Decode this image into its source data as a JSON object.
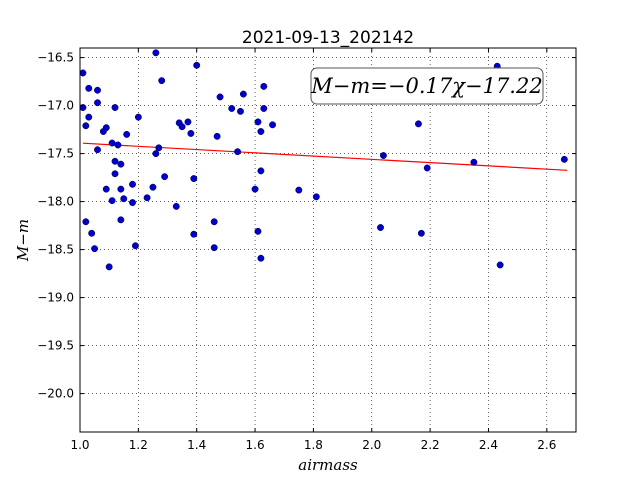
{
  "chart_data": {
    "type": "scatter",
    "title": "2021-09-13_202142",
    "xlabel": "airmass",
    "ylabel": "M−m",
    "xlim": [
      1.0,
      2.7
    ],
    "ylim": [
      -20.4,
      -16.4
    ],
    "y_inverted": true,
    "grid": true,
    "x_ticks": [
      1.0,
      1.2,
      1.4,
      1.6,
      1.8,
      2.0,
      2.2,
      2.4,
      2.6
    ],
    "x_tick_labels": [
      "1.0",
      "1.2",
      "1.4",
      "1.6",
      "1.8",
      "2.0",
      "2.2",
      "2.4",
      "2.6"
    ],
    "y_ticks": [
      -16.5,
      -17.0,
      -17.5,
      -18.0,
      -18.5,
      -19.0,
      -19.5,
      -20.0
    ],
    "y_tick_labels": [
      "−16.5",
      "−17.0",
      "−17.5",
      "−18.0",
      "−18.5",
      "−19.0",
      "−19.5",
      "−20.0"
    ],
    "annotation": "M−m=−0.17χ−17.22",
    "points_color": "#0000cc",
    "fit_color": "#ff0000",
    "fit": {
      "slope": -0.17,
      "intercept": -17.22,
      "x_range": [
        1.01,
        2.67
      ]
    },
    "points": [
      [
        1.01,
        -16.66
      ],
      [
        1.01,
        -17.02
      ],
      [
        1.02,
        -18.21
      ],
      [
        1.02,
        -17.21
      ],
      [
        1.03,
        -16.82
      ],
      [
        1.03,
        -17.12
      ],
      [
        1.04,
        -18.33
      ],
      [
        1.05,
        -18.49
      ],
      [
        1.06,
        -16.84
      ],
      [
        1.06,
        -16.97
      ],
      [
        1.06,
        -17.46
      ],
      [
        1.08,
        -17.27
      ],
      [
        1.09,
        -17.23
      ],
      [
        1.09,
        -17.87
      ],
      [
        1.1,
        -18.68
      ],
      [
        1.11,
        -17.39
      ],
      [
        1.11,
        -17.99
      ],
      [
        1.12,
        -17.58
      ],
      [
        1.12,
        -17.71
      ],
      [
        1.12,
        -17.02
      ],
      [
        1.13,
        -17.41
      ],
      [
        1.14,
        -17.61
      ],
      [
        1.14,
        -17.87
      ],
      [
        1.14,
        -18.19
      ],
      [
        1.15,
        -17.97
      ],
      [
        1.16,
        -17.3
      ],
      [
        1.18,
        -17.82
      ],
      [
        1.18,
        -18.01
      ],
      [
        1.19,
        -18.46
      ],
      [
        1.2,
        -17.12
      ],
      [
        1.23,
        -17.96
      ],
      [
        1.25,
        -17.85
      ],
      [
        1.26,
        -17.5
      ],
      [
        1.26,
        -16.45
      ],
      [
        1.27,
        -17.44
      ],
      [
        1.28,
        -16.74
      ],
      [
        1.29,
        -17.74
      ],
      [
        1.33,
        -18.05
      ],
      [
        1.34,
        -17.18
      ],
      [
        1.35,
        -17.22
      ],
      [
        1.37,
        -17.17
      ],
      [
        1.38,
        -17.29
      ],
      [
        1.39,
        -17.76
      ],
      [
        1.39,
        -18.34
      ],
      [
        1.4,
        -16.58
      ],
      [
        1.46,
        -18.48
      ],
      [
        1.46,
        -18.21
      ],
      [
        1.47,
        -17.32
      ],
      [
        1.48,
        -16.91
      ],
      [
        1.52,
        -17.03
      ],
      [
        1.54,
        -17.48
      ],
      [
        1.55,
        -17.06
      ],
      [
        1.56,
        -16.88
      ],
      [
        1.6,
        -17.87
      ],
      [
        1.61,
        -18.31
      ],
      [
        1.61,
        -17.17
      ],
      [
        1.62,
        -17.27
      ],
      [
        1.62,
        -17.68
      ],
      [
        1.62,
        -18.59
      ],
      [
        1.63,
        -17.03
      ],
      [
        1.63,
        -16.8
      ],
      [
        1.66,
        -17.2
      ],
      [
        1.75,
        -17.88
      ],
      [
        1.81,
        -17.95
      ],
      [
        2.03,
        -18.27
      ],
      [
        2.04,
        -17.52
      ],
      [
        2.16,
        -17.19
      ],
      [
        2.17,
        -18.33
      ],
      [
        2.19,
        -17.65
      ],
      [
        2.35,
        -17.59
      ],
      [
        2.43,
        -16.59
      ],
      [
        2.44,
        -18.66
      ],
      [
        2.66,
        -17.56
      ]
    ]
  }
}
